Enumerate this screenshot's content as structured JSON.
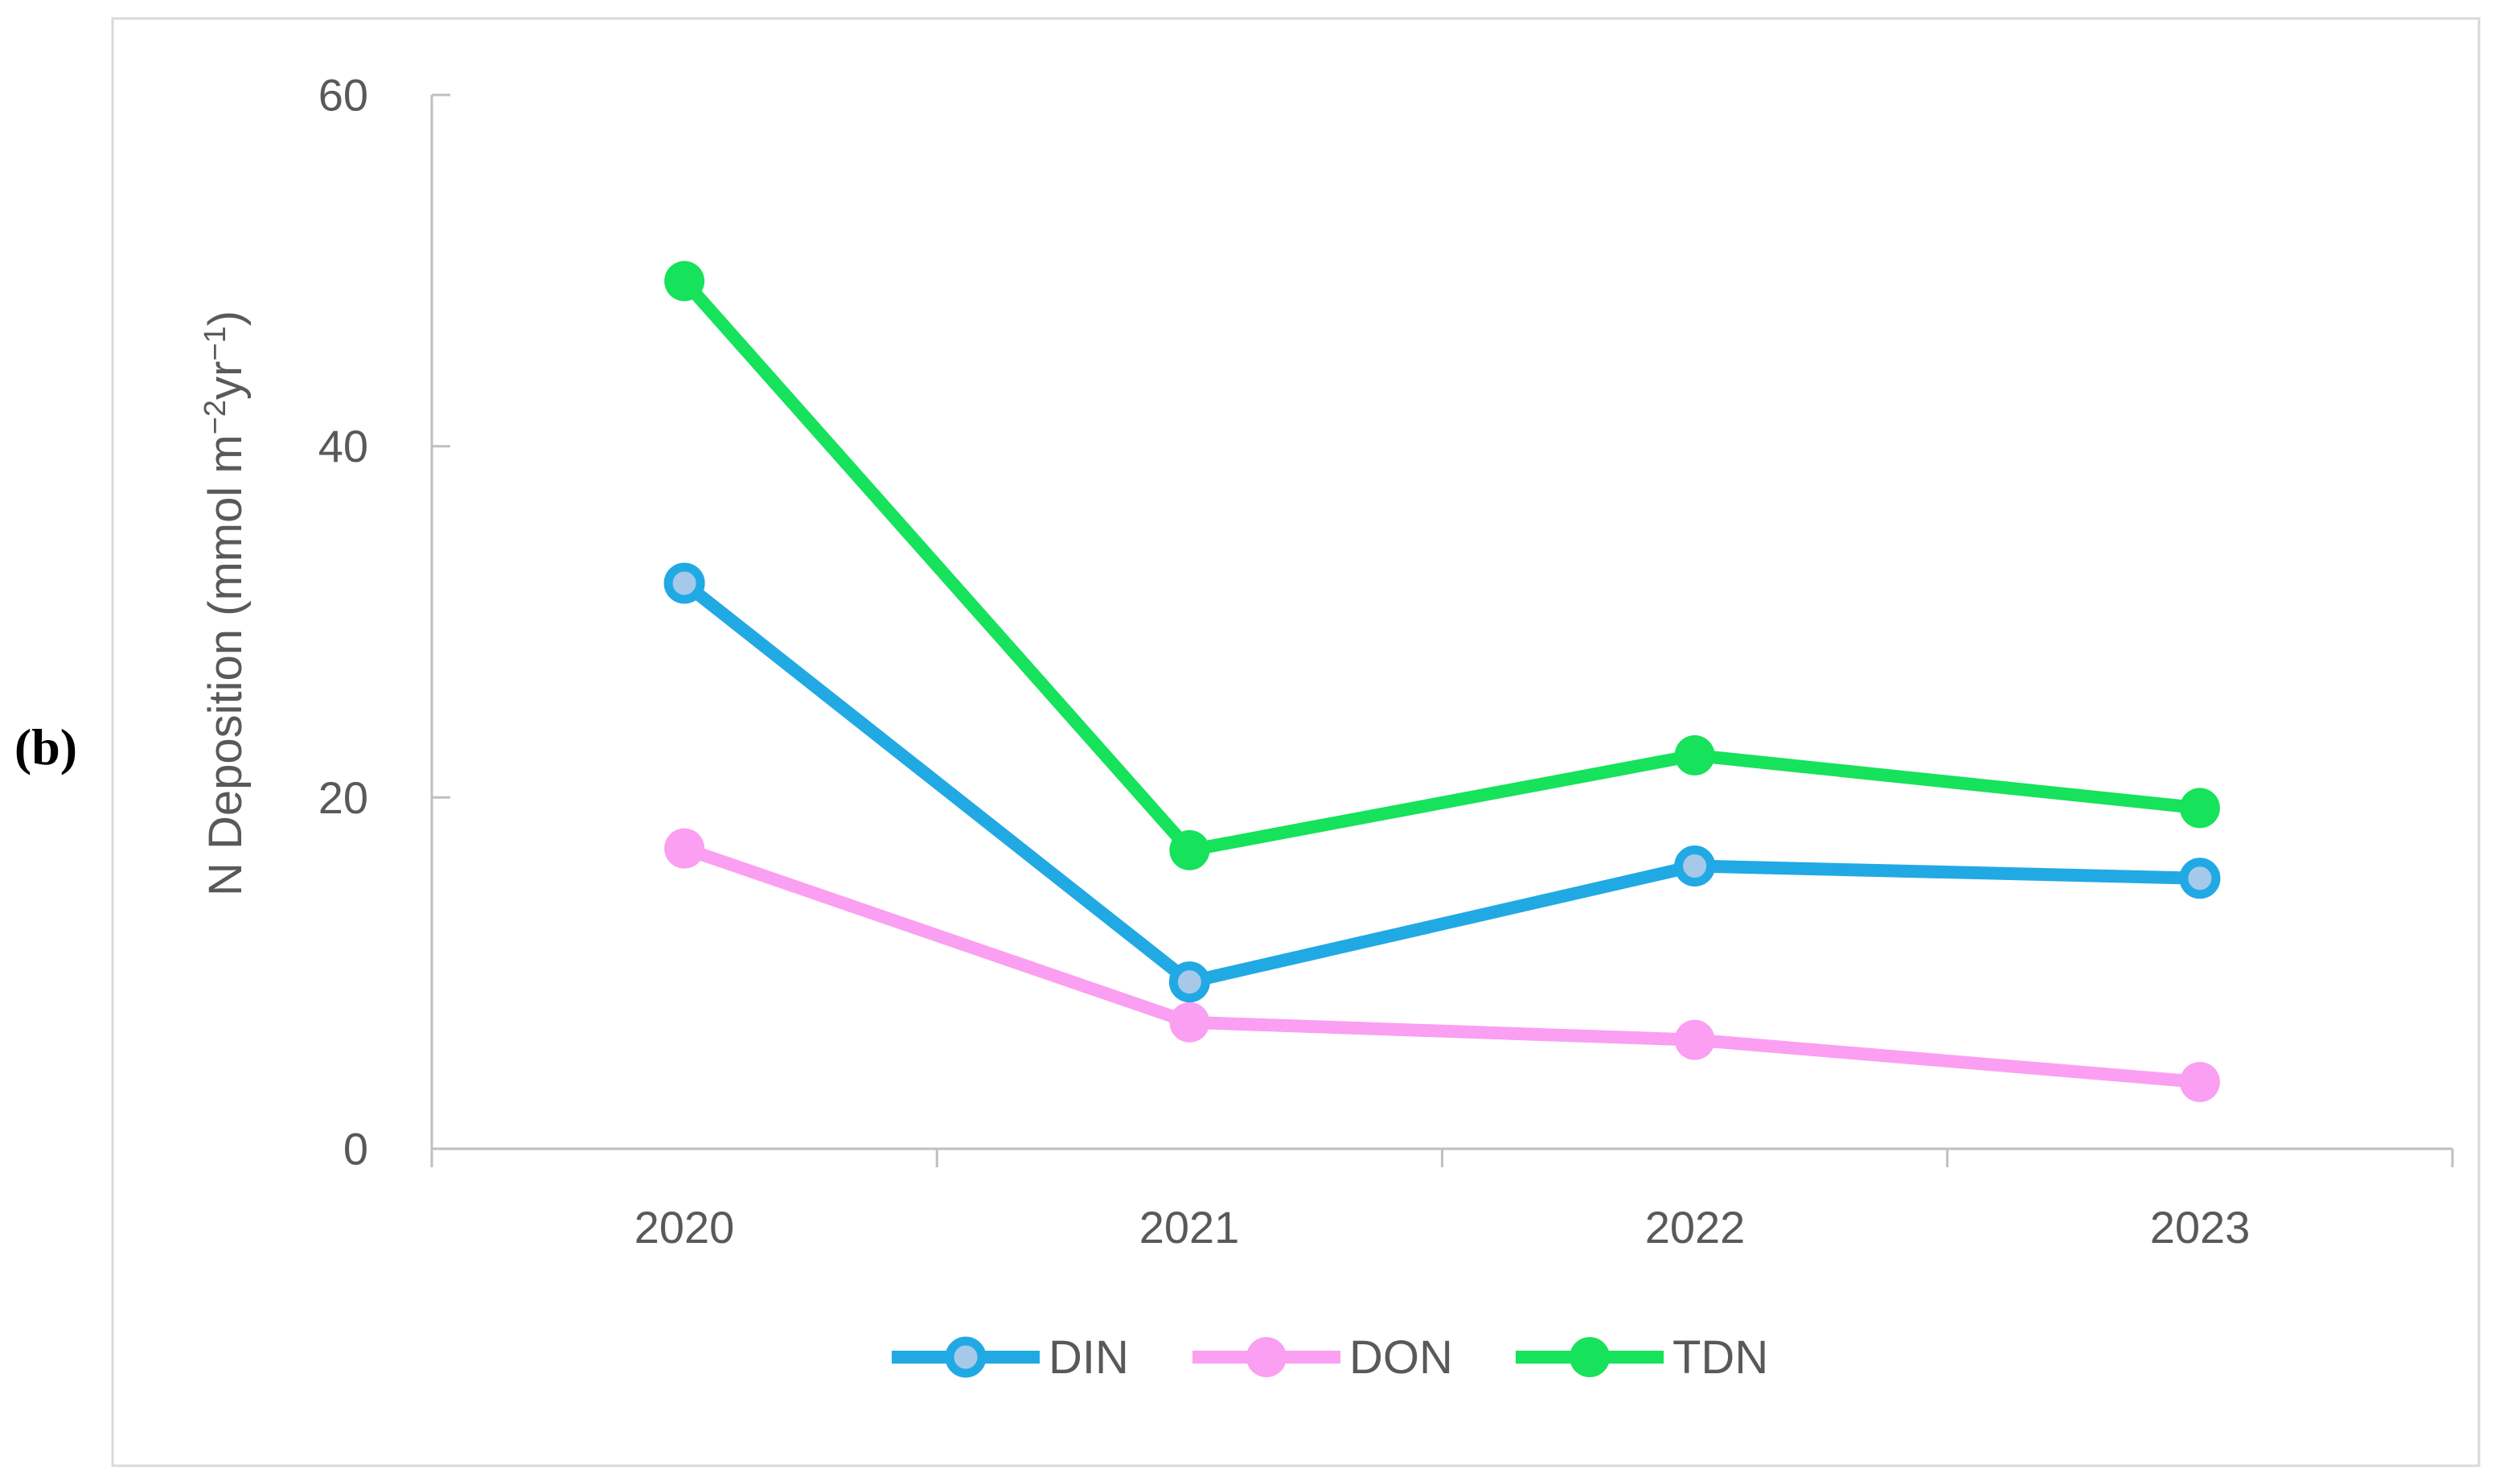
{
  "panel_label": "(b)",
  "colors": {
    "background": "#FFFFFF",
    "figure_border": "#D9D9D9",
    "axis_line": "#BFBFBF",
    "text": "#595959",
    "din_blue": "#21A9E4",
    "din_marker_fill": "#A6C9EA",
    "don_pink": "#FA9FF2",
    "tdn_green": "#16E25B"
  },
  "chart_data": {
    "type": "line",
    "title": "",
    "categories": [
      "2020",
      "2021",
      "2022",
      "2023"
    ],
    "series": [
      {
        "name": "DIN",
        "color": "#21A9E4",
        "marker_fill": "#A6C9EA",
        "marker_style": "ring",
        "values": [
          32.2,
          9.5,
          16.1,
          15.4
        ]
      },
      {
        "name": "DON",
        "color": "#FA9FF2",
        "marker_fill": "#FA9FF2",
        "marker_style": "solid",
        "values": [
          17.1,
          7.2,
          6.2,
          3.8
        ]
      },
      {
        "name": "TDN",
        "color": "#16E25B",
        "marker_fill": "#16E25B",
        "marker_style": "solid",
        "values": [
          49.4,
          17.0,
          22.4,
          19.4
        ]
      }
    ],
    "xlabel": "",
    "ylabel": "N Deposition (mmol m⁻²yr⁻¹)",
    "ylabel_parts": {
      "pre": "N Deposition (mmol m",
      "sup1": "−2",
      "mid": "yr",
      "sup2": "−1",
      "post": ")"
    },
    "ylim": [
      0,
      60
    ],
    "yticks": [
      0,
      20,
      40,
      60
    ],
    "ytick_labels": [
      "0",
      "20",
      "40",
      "60"
    ],
    "grid": false,
    "legend_position": "bottom",
    "legend_labels": [
      "DIN",
      "DON",
      "TDN"
    ]
  }
}
